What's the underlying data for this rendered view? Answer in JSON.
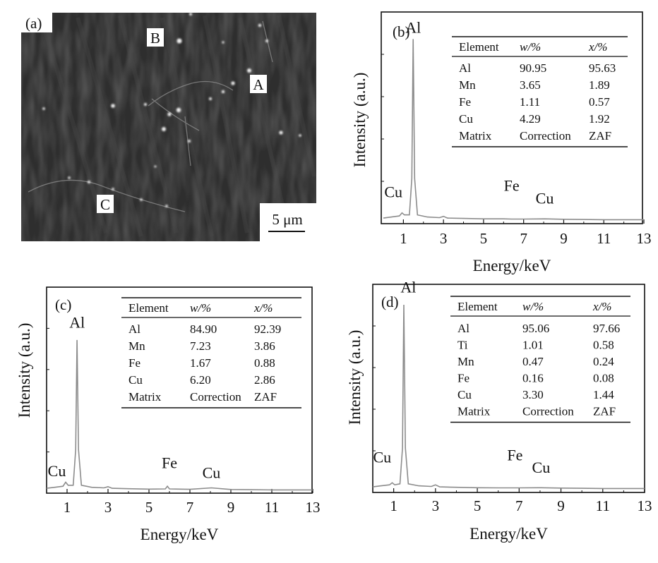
{
  "panel_a": {
    "label": "(a)",
    "points": [
      "A",
      "B",
      "C"
    ],
    "scale_bar": "5 μm"
  },
  "chart_data": [
    {
      "panel": "(b)",
      "type": "line",
      "xlabel": "Energy/keV",
      "ylabel": "Intensity (a.u.)",
      "xlim": [
        0,
        13
      ],
      "xticks": [
        1,
        3,
        5,
        7,
        9,
        11,
        13
      ],
      "ylim": [
        0,
        100
      ],
      "spectrum_x": [
        0.0,
        0.4,
        0.8,
        0.93,
        1.05,
        1.3,
        1.42,
        1.487,
        1.56,
        1.7,
        2.2,
        2.8,
        3.0,
        3.2,
        4.0,
        5.0,
        6.0,
        6.4,
        7.0,
        8.05,
        9.0,
        10.0,
        11.0,
        12.0,
        13.0
      ],
      "spectrum_y": [
        1.0,
        1.5,
        2.0,
        3.5,
        2.5,
        2.5,
        20.0,
        87.0,
        20.0,
        2.5,
        1.5,
        1.2,
        1.8,
        1.0,
        0.8,
        0.6,
        0.6,
        0.5,
        0.5,
        0.6,
        0.4,
        0.3,
        0.2,
        0.2,
        0.2
      ],
      "peak_labels": [
        {
          "text": "Al",
          "x": 1.49,
          "y": 90
        },
        {
          "text": "Cu",
          "x": 0.5,
          "y": 11
        },
        {
          "text": "Fe",
          "x": 6.4,
          "y": 14
        },
        {
          "text": "Cu",
          "x": 8.05,
          "y": 8
        }
      ],
      "table": {
        "headers": [
          "Element",
          "w/%",
          "x/%"
        ],
        "rows": [
          [
            "Al",
            "90.95",
            "95.63"
          ],
          [
            "Mn",
            "3.65",
            "1.89"
          ],
          [
            "Fe",
            "1.11",
            "0.57"
          ],
          [
            "Cu",
            "4.29",
            "1.92"
          ],
          [
            "Matrix",
            "Correction",
            "ZAF"
          ]
        ]
      }
    },
    {
      "panel": "(c)",
      "type": "line",
      "xlabel": "Energy/keV",
      "ylabel": "Intensity (a.u.)",
      "xlim": [
        0,
        13
      ],
      "xticks": [
        1,
        3,
        5,
        7,
        9,
        11,
        13
      ],
      "ylim": [
        0,
        100
      ],
      "spectrum_x": [
        0.0,
        0.4,
        0.8,
        0.93,
        1.05,
        1.3,
        1.42,
        1.487,
        1.56,
        1.7,
        2.2,
        2.8,
        3.0,
        3.2,
        4.0,
        5.0,
        5.8,
        5.9,
        6.0,
        7.0,
        8.05,
        9.0,
        10.0,
        11.0,
        12.0,
        13.0
      ],
      "spectrum_y": [
        1.0,
        1.5,
        2.0,
        4.0,
        2.5,
        2.5,
        20.0,
        74.0,
        20.0,
        2.5,
        1.5,
        1.2,
        1.8,
        1.0,
        0.8,
        0.6,
        0.7,
        2.0,
        0.7,
        0.5,
        1.2,
        0.4,
        0.3,
        0.2,
        0.2,
        0.2
      ],
      "peak_labels": [
        {
          "text": "Al",
          "x": 1.49,
          "y": 80
        },
        {
          "text": "Cu",
          "x": 0.5,
          "y": 7
        },
        {
          "text": "Fe",
          "x": 6.0,
          "y": 11
        },
        {
          "text": "Cu",
          "x": 8.05,
          "y": 6
        }
      ],
      "table": {
        "headers": [
          "Element",
          "w/%",
          "x/%"
        ],
        "rows": [
          [
            "Al",
            "84.90",
            "92.39"
          ],
          [
            "Mn",
            "7.23",
            "3.86"
          ],
          [
            "Fe",
            "1.67",
            "0.88"
          ],
          [
            "Cu",
            "6.20",
            "2.86"
          ],
          [
            "Matrix",
            "Correction",
            "ZAF"
          ]
        ]
      }
    },
    {
      "panel": "(d)",
      "type": "line",
      "xlabel": "Energy/keV",
      "ylabel": "Intensity (a.u.)",
      "xlim": [
        0,
        13
      ],
      "xticks": [
        1,
        3,
        5,
        7,
        9,
        11,
        13
      ],
      "ylim": [
        0,
        100
      ],
      "spectrum_x": [
        0.0,
        0.4,
        0.8,
        0.93,
        1.05,
        1.3,
        1.42,
        1.487,
        1.56,
        1.7,
        2.2,
        2.8,
        3.0,
        3.2,
        4.0,
        5.0,
        6.0,
        6.4,
        7.0,
        8.05,
        9.0,
        10.0,
        11.0,
        12.0,
        13.0
      ],
      "spectrum_y": [
        1.0,
        1.5,
        2.0,
        3.0,
        2.0,
        2.5,
        20.0,
        90.0,
        20.0,
        2.5,
        1.5,
        1.2,
        2.0,
        1.0,
        0.8,
        0.6,
        0.5,
        0.5,
        0.5,
        0.6,
        0.4,
        0.3,
        0.2,
        0.2,
        0.2
      ],
      "peak_labels": [
        {
          "text": "Al",
          "x": 1.7,
          "y": 96
        },
        {
          "text": "Cu",
          "x": 0.45,
          "y": 13
        },
        {
          "text": "Fe",
          "x": 6.8,
          "y": 14
        },
        {
          "text": "Cu",
          "x": 8.05,
          "y": 8
        }
      ],
      "table": {
        "headers": [
          "Element",
          "w/%",
          "x/%"
        ],
        "rows": [
          [
            "Al",
            "95.06",
            "97.66"
          ],
          [
            "Ti",
            "1.01",
            "0.58"
          ],
          [
            "Mn",
            "0.47",
            "0.24"
          ],
          [
            "Fe",
            "0.16",
            "0.08"
          ],
          [
            "Cu",
            "3.30",
            "1.44"
          ],
          [
            "Matrix",
            "Correction",
            "ZAF"
          ]
        ]
      }
    }
  ]
}
